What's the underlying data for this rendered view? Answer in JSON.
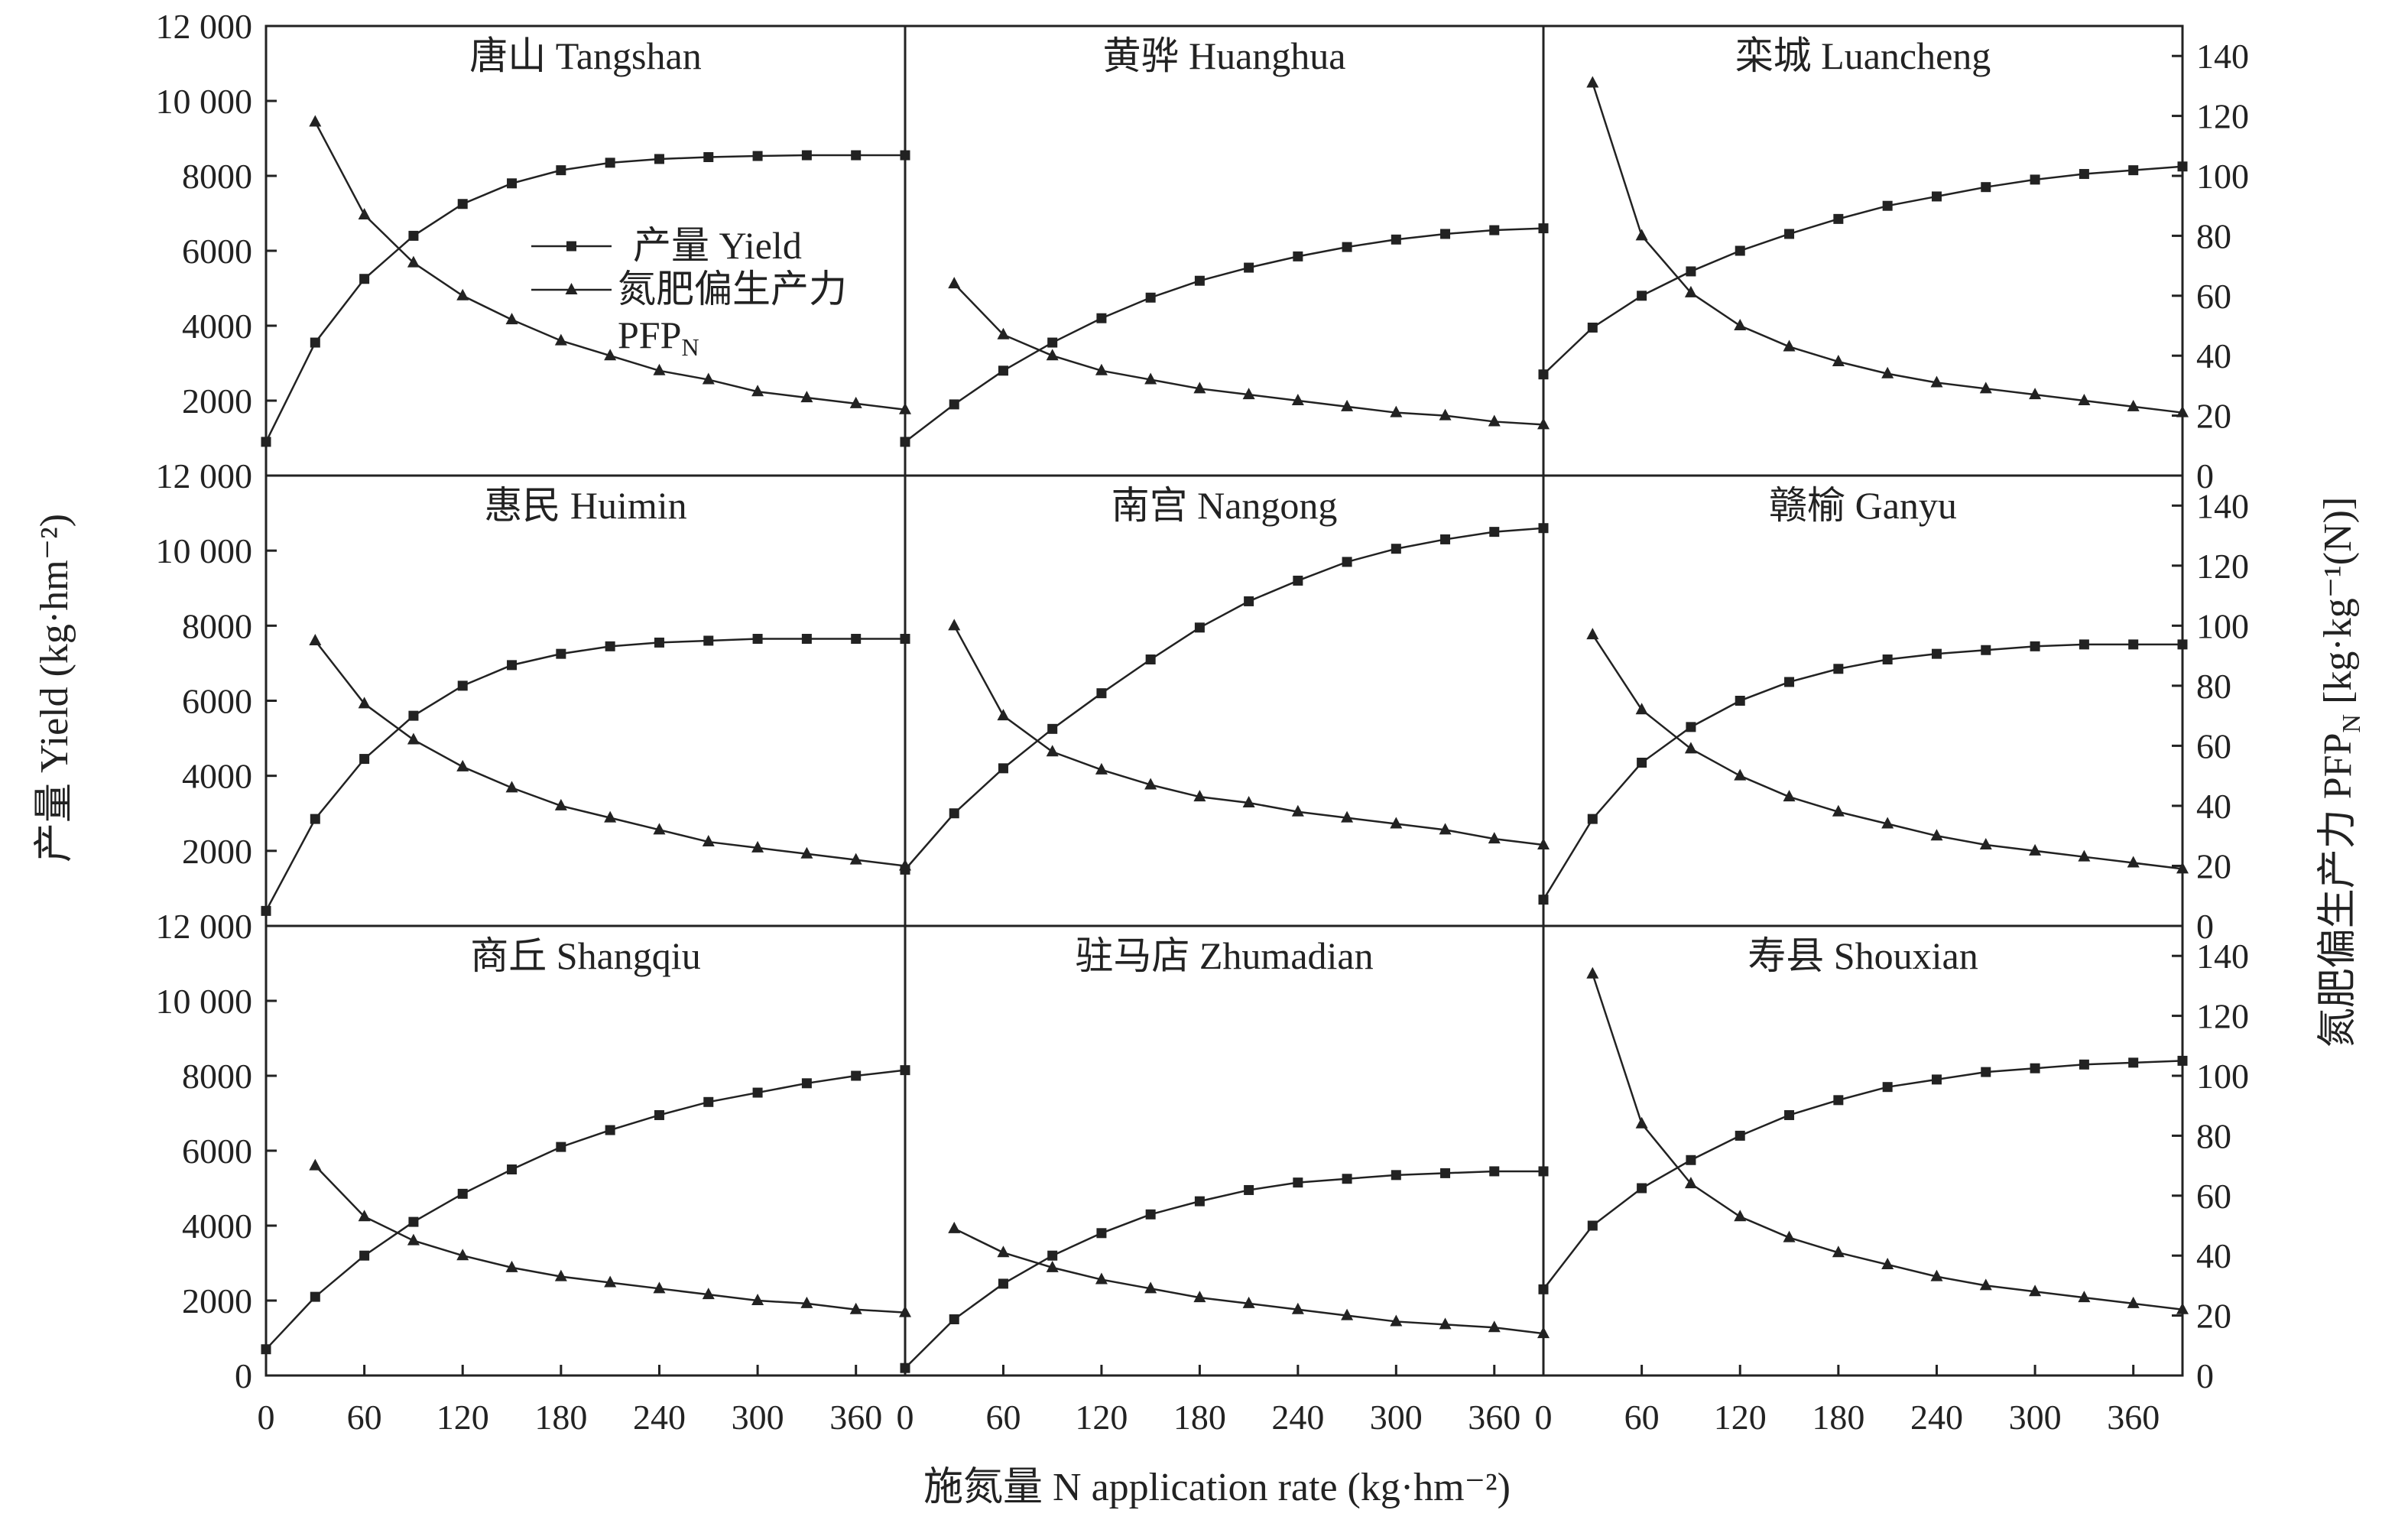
{
  "chart_data": {
    "type": "line",
    "layout": "3x3 small multiples",
    "xlabel": "施氮量 N application rate (kg·hm⁻²)",
    "ylabel_left": "产量 Yield (kg·hm⁻²)",
    "ylabel_right": "氮肥偏生产力 PFPN [kg·kg⁻¹(N)]",
    "x_ticks": [
      "0",
      "60",
      "120",
      "180",
      "240",
      "300",
      "360"
    ],
    "xlim": [
      0,
      390
    ],
    "ylim_left": [
      0,
      12000
    ],
    "ylim_right": [
      0,
      150
    ],
    "y_ticks_left": [
      "0",
      "2000",
      "4000",
      "6000",
      "8000",
      "10 000",
      "12 000"
    ],
    "y_ticks_right": [
      "0",
      "20",
      "40",
      "60",
      "80",
      "100",
      "120",
      "140"
    ],
    "legend": {
      "placement": "inside top-left panel, right side",
      "entries": [
        {
          "name": "产量 Yield",
          "marker": "square"
        },
        {
          "name": "氮肥偏生产力",
          "name_line2": "PFPN",
          "marker": "triangle"
        }
      ]
    },
    "panels": [
      {
        "title": "唐山 Tangshan",
        "yield": {
          "x": [
            0,
            30,
            60,
            90,
            120,
            150,
            180,
            210,
            240,
            270,
            300,
            330,
            360,
            390
          ],
          "y": [
            900,
            3550,
            5250,
            6400,
            7250,
            7800,
            8150,
            8350,
            8450,
            8500,
            8530,
            8550,
            8550,
            8550
          ]
        },
        "pfpn": {
          "x": [
            30,
            60,
            90,
            120,
            150,
            180,
            210,
            240,
            270,
            300,
            330,
            360,
            390
          ],
          "y": [
            118,
            87,
            71,
            60,
            52,
            45,
            40,
            35,
            32,
            28,
            26,
            24,
            22
          ]
        }
      },
      {
        "title": "黄骅 Huanghua",
        "yield": {
          "x": [
            0,
            30,
            60,
            90,
            120,
            150,
            180,
            210,
            240,
            270,
            300,
            330,
            360,
            390
          ],
          "y": [
            900,
            1900,
            2800,
            3550,
            4200,
            4750,
            5200,
            5550,
            5850,
            6100,
            6300,
            6450,
            6550,
            6600
          ]
        },
        "pfpn": {
          "x": [
            30,
            60,
            90,
            120,
            150,
            180,
            210,
            240,
            270,
            300,
            330,
            360,
            390
          ],
          "y": [
            64,
            47,
            40,
            35,
            32,
            29,
            27,
            25,
            23,
            21,
            20,
            18,
            17
          ]
        }
      },
      {
        "title": "栾城 Luancheng",
        "yield": {
          "x": [
            0,
            30,
            60,
            90,
            120,
            150,
            180,
            210,
            240,
            270,
            300,
            330,
            360,
            390
          ],
          "y": [
            2700,
            3950,
            4800,
            5450,
            6000,
            6450,
            6850,
            7200,
            7450,
            7700,
            7900,
            8050,
            8150,
            8250
          ]
        },
        "pfpn": {
          "x": [
            30,
            60,
            90,
            120,
            150,
            180,
            210,
            240,
            270,
            300,
            330,
            360,
            390
          ],
          "y": [
            131,
            80,
            61,
            50,
            43,
            38,
            34,
            31,
            29,
            27,
            25,
            23,
            21
          ]
        }
      },
      {
        "title": "惠民 Huimin",
        "yield": {
          "x": [
            0,
            30,
            60,
            90,
            120,
            150,
            180,
            210,
            240,
            270,
            300,
            330,
            360,
            390
          ],
          "y": [
            400,
            2850,
            4450,
            5600,
            6400,
            6950,
            7250,
            7450,
            7550,
            7600,
            7650,
            7650,
            7650,
            7650
          ]
        },
        "pfpn": {
          "x": [
            30,
            60,
            90,
            120,
            150,
            180,
            210,
            240,
            270,
            300,
            330,
            360,
            390
          ],
          "y": [
            95,
            74,
            62,
            53,
            46,
            40,
            36,
            32,
            28,
            26,
            24,
            22,
            20
          ]
        }
      },
      {
        "title": "南宫 Nangong",
        "yield": {
          "x": [
            0,
            30,
            60,
            90,
            120,
            150,
            180,
            210,
            240,
            270,
            300,
            330,
            360,
            390
          ],
          "y": [
            1500,
            3000,
            4200,
            5250,
            6200,
            7100,
            7950,
            8650,
            9200,
            9700,
            10050,
            10300,
            10500,
            10600
          ]
        },
        "pfpn": {
          "x": [
            30,
            60,
            90,
            120,
            150,
            180,
            210,
            240,
            270,
            300,
            330,
            360,
            390
          ],
          "y": [
            100,
            70,
            58,
            52,
            47,
            43,
            41,
            38,
            36,
            34,
            32,
            29,
            27
          ]
        }
      },
      {
        "title": "赣榆 Ganyu",
        "yield": {
          "x": [
            0,
            30,
            60,
            90,
            120,
            150,
            180,
            210,
            240,
            270,
            300,
            330,
            360,
            390
          ],
          "y": [
            700,
            2850,
            4350,
            5300,
            6000,
            6500,
            6850,
            7100,
            7250,
            7350,
            7450,
            7500,
            7500,
            7500
          ]
        },
        "pfpn": {
          "x": [
            30,
            60,
            90,
            120,
            150,
            180,
            210,
            240,
            270,
            300,
            330,
            360,
            390
          ],
          "y": [
            97,
            72,
            59,
            50,
            43,
            38,
            34,
            30,
            27,
            25,
            23,
            21,
            19
          ]
        }
      },
      {
        "title": "商丘 Shangqiu",
        "yield": {
          "x": [
            0,
            30,
            60,
            90,
            120,
            150,
            180,
            210,
            240,
            270,
            300,
            330,
            360,
            390
          ],
          "y": [
            700,
            2100,
            3200,
            4100,
            4850,
            5500,
            6100,
            6550,
            6950,
            7300,
            7550,
            7800,
            8000,
            8150
          ]
        },
        "pfpn": {
          "x": [
            30,
            60,
            90,
            120,
            150,
            180,
            210,
            240,
            270,
            300,
            330,
            360,
            390
          ],
          "y": [
            70,
            53,
            45,
            40,
            36,
            33,
            31,
            29,
            27,
            25,
            24,
            22,
            21
          ]
        }
      },
      {
        "title": "驻马店 Zhumadian",
        "yield": {
          "x": [
            0,
            30,
            60,
            90,
            120,
            150,
            180,
            210,
            240,
            270,
            300,
            330,
            360,
            390
          ],
          "y": [
            200,
            1500,
            2450,
            3200,
            3800,
            4300,
            4650,
            4950,
            5150,
            5250,
            5350,
            5400,
            5450,
            5450
          ]
        },
        "pfpn": {
          "x": [
            30,
            60,
            90,
            120,
            150,
            180,
            210,
            240,
            270,
            300,
            330,
            360,
            390
          ],
          "y": [
            49,
            41,
            36,
            32,
            29,
            26,
            24,
            22,
            20,
            18,
            17,
            16,
            14
          ]
        }
      },
      {
        "title": "寿县 Shouxian",
        "yield": {
          "x": [
            0,
            30,
            60,
            90,
            120,
            150,
            180,
            210,
            240,
            270,
            300,
            330,
            360,
            390
          ],
          "y": [
            2300,
            4000,
            5000,
            5750,
            6400,
            6950,
            7350,
            7700,
            7900,
            8100,
            8200,
            8300,
            8350,
            8400
          ]
        },
        "pfpn": {
          "x": [
            30,
            60,
            90,
            120,
            150,
            180,
            210,
            240,
            270,
            300,
            330,
            360,
            390
          ],
          "y": [
            134,
            84,
            64,
            53,
            46,
            41,
            37,
            33,
            30,
            28,
            26,
            24,
            22
          ]
        }
      }
    ]
  }
}
